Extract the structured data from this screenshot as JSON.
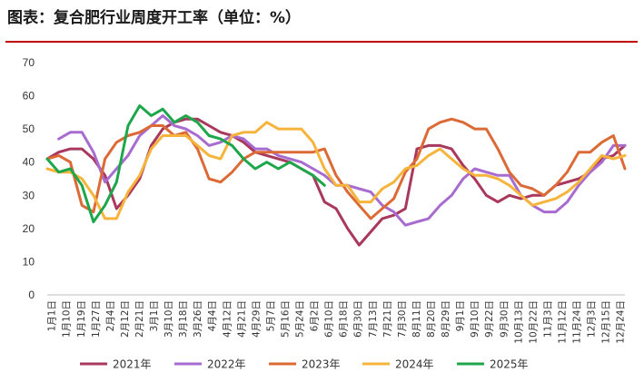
{
  "chart_data": {
    "type": "line",
    "title": "图表：复合肥行业周度开工率（单位：%）",
    "colors": {
      "title_rule": "#c00000",
      "2021年": "#a8385c",
      "2022年": "#a86bd0",
      "2023年": "#dc6a36",
      "2024年": "#f6b43c",
      "2025年": "#1ea64a"
    },
    "ylim": [
      0,
      70
    ],
    "yticks": [
      0,
      10,
      20,
      30,
      40,
      50,
      60,
      70
    ],
    "grid": false,
    "legend_position": "bottom",
    "categories": [
      "1月1日",
      "1月10日",
      "1月19日",
      "1月27日",
      "2月4日",
      "2月12日",
      "2月21日",
      "3月1日",
      "3月10日",
      "3月18日",
      "3月26日",
      "4月4日",
      "4月12日",
      "4月21日",
      "4月29日",
      "5月7日",
      "5月16日",
      "5月24日",
      "6月2日",
      "6月10日",
      "6月18日",
      "6月30日",
      "7月13日",
      "7月21日",
      "7月30日",
      "8月11日",
      "8月20日",
      "8月29日",
      "9月1日",
      "9月10日",
      "9月22日",
      "9月30日",
      "10月13日",
      "10月22日",
      "11月3日",
      "11月12日",
      "11月24日",
      "12月3日",
      "12月15日",
      "12月24日"
    ],
    "x_range": [
      0,
      50
    ],
    "series": [
      {
        "name": "2021年",
        "x": [
          0,
          1,
          2,
          3,
          4,
          5,
          6,
          7,
          8,
          9,
          10,
          11,
          12,
          13,
          14,
          15,
          16,
          17,
          18,
          19,
          20,
          21,
          22,
          23,
          24,
          25,
          26,
          27,
          28,
          29,
          30,
          31,
          32,
          33,
          34,
          35,
          36,
          37,
          38,
          39,
          40,
          41,
          42,
          43,
          44,
          45,
          46,
          47,
          48,
          49,
          50
        ],
        "values": [
          41,
          43,
          44,
          44,
          41,
          36,
          26,
          30,
          35,
          45,
          50,
          52,
          53,
          53,
          51,
          49,
          48,
          46,
          43,
          42,
          41,
          40,
          38,
          36,
          28,
          26,
          20,
          15,
          19,
          23,
          24,
          26,
          44,
          45,
          45,
          44,
          39,
          35,
          30,
          28,
          30,
          29,
          30,
          30,
          33,
          34,
          35,
          37,
          41,
          42,
          45
        ]
      },
      {
        "name": "2022年",
        "x": [
          1,
          2,
          3,
          4,
          5,
          6,
          7,
          8,
          9,
          10,
          11,
          12,
          13,
          14,
          15,
          16,
          17,
          18,
          19,
          20,
          21,
          22,
          23,
          24,
          25,
          26,
          27,
          28,
          29,
          30,
          31,
          32,
          33,
          34,
          35,
          36,
          37,
          38,
          39,
          40,
          41,
          42,
          43,
          44,
          45,
          46,
          47,
          48,
          49,
          50
        ],
        "values": [
          47,
          49,
          49,
          43,
          34,
          38,
          42,
          48,
          51,
          54,
          51,
          50,
          48,
          45,
          46,
          48,
          47,
          44,
          44,
          42,
          41,
          40,
          38,
          36,
          33,
          33,
          32,
          31,
          27,
          25,
          21,
          22,
          23,
          27,
          30,
          35,
          38,
          37,
          36,
          36,
          30,
          27,
          25,
          25,
          28,
          33,
          37,
          40,
          45,
          45
        ]
      },
      {
        "name": "2023年",
        "x": [
          0,
          1,
          2,
          3,
          4,
          5,
          6,
          7,
          8,
          9,
          10,
          11,
          12,
          13,
          14,
          15,
          16,
          17,
          18,
          19,
          20,
          21,
          22,
          23,
          24,
          25,
          26,
          27,
          28,
          29,
          30,
          31,
          32,
          33,
          34,
          35,
          36,
          37,
          38,
          39,
          40,
          41,
          42,
          43,
          44,
          45,
          46,
          47,
          48,
          49,
          50
        ],
        "values": [
          41,
          42,
          40,
          27,
          25,
          41,
          46,
          48,
          49,
          51,
          51,
          48,
          49,
          44,
          35,
          34,
          37,
          41,
          43,
          43,
          43,
          43,
          43,
          43,
          44,
          36,
          31,
          27,
          23,
          26,
          29,
          37,
          41,
          50,
          52,
          53,
          52,
          50,
          50,
          44,
          37,
          33,
          32,
          30,
          33,
          37,
          43,
          43,
          46,
          48,
          38
        ]
      },
      {
        "name": "2024年",
        "x": [
          0,
          1,
          2,
          3,
          4,
          5,
          6,
          7,
          8,
          9,
          10,
          11,
          12,
          13,
          14,
          15,
          16,
          17,
          18,
          19,
          20,
          21,
          22,
          23,
          24,
          25,
          26,
          27,
          28,
          29,
          30,
          31,
          32,
          33,
          34,
          35,
          36,
          37,
          38,
          39,
          40,
          41,
          42,
          43,
          44,
          45,
          46,
          47,
          48,
          49,
          50
        ],
        "values": [
          38,
          37,
          37,
          35,
          30,
          23,
          23,
          31,
          36,
          44,
          48,
          48,
          48,
          45,
          42,
          41,
          48,
          49,
          49,
          52,
          50,
          50,
          50,
          46,
          38,
          33,
          33,
          28,
          28,
          32,
          34,
          38,
          39,
          42,
          44,
          41,
          38,
          36,
          36,
          35,
          33,
          30,
          27,
          28,
          29,
          31,
          34,
          38,
          42,
          41,
          42
        ]
      },
      {
        "name": "2025年",
        "x": [
          0,
          1,
          2,
          3,
          4,
          5,
          6,
          7,
          8,
          9,
          10,
          11,
          12,
          13,
          14,
          15,
          16,
          17,
          18,
          19,
          20,
          21,
          22,
          23,
          24
        ],
        "values": [
          41,
          37,
          38,
          33,
          22,
          27,
          34,
          51,
          57,
          54,
          56,
          52,
          54,
          52,
          48,
          47,
          45,
          41,
          38,
          40,
          38,
          40,
          38,
          36,
          33
        ]
      }
    ]
  }
}
